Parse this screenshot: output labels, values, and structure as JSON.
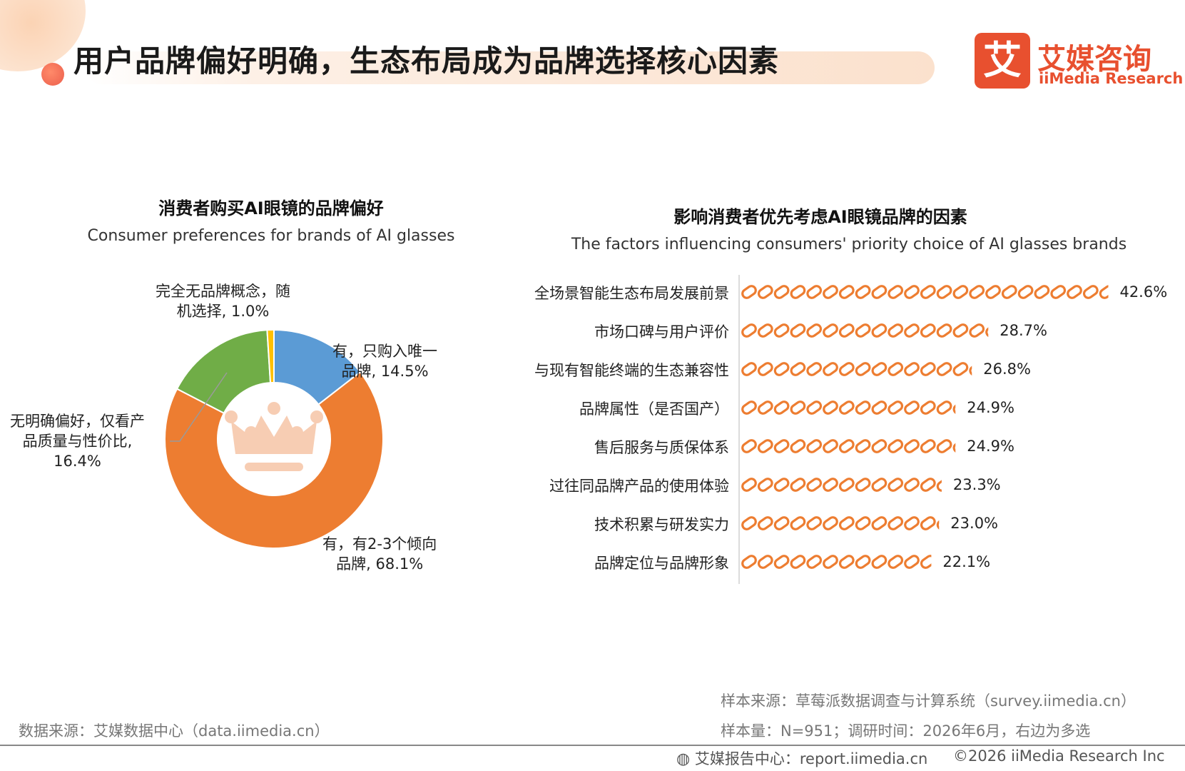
{
  "header": {
    "title": "用户品牌偏好明确，生态布局成为品牌选择核心因素",
    "logo_mark": "艾",
    "logo_cn": "艾媒咨询",
    "logo_en": "iiMedia Research"
  },
  "colors": {
    "brand": "#e8502f",
    "blue": "#5b9bd5",
    "orange": "#ed7d31",
    "green": "#70ad47",
    "yellow": "#ffc000"
  },
  "chart_data": [
    {
      "type": "pie",
      "title": "消费者购买AI眼镜的品牌偏好",
      "subtitle": "Consumer preferences for brands of AI glasses",
      "slices": [
        {
          "label_lines": [
            "有，只购入唯一",
            "品牌, 14.5%"
          ],
          "category": "有，只购入唯一品牌",
          "value": 14.5,
          "color": "#5b9bd5"
        },
        {
          "label_lines": [
            "有，有2-3个倾向",
            "品牌, 68.1%"
          ],
          "category": "有，有2-3个倾向品牌",
          "value": 68.1,
          "color": "#ed7d31"
        },
        {
          "label_lines": [
            "无明确偏好，仅看产",
            "品质量与性价比,",
            "16.4%"
          ],
          "category": "无明确偏好，仅看产品质量与性价比",
          "value": 16.4,
          "color": "#70ad47"
        },
        {
          "label_lines": [
            "完全无品牌概念，随",
            "机选择, 1.0%"
          ],
          "category": "完全无品牌概念，随机选择",
          "value": 1.0,
          "color": "#ffc000"
        }
      ],
      "center_icon": "crown-icon"
    },
    {
      "type": "bar",
      "orientation": "horizontal",
      "title": "影响消费者优先考虑AI眼镜品牌的因素",
      "subtitle": "The factors influencing consumers' priority choice of AI glasses brands",
      "categories": [
        "全场景智能生态布局发展前景",
        "市场口碑与用户评价",
        "与现有智能终端的生态兼容性",
        "品牌属性（是否国产）",
        "售后服务与质保体系",
        "过往同品牌产品的使用体验",
        "技术积累与研发实力",
        "品牌定位与品牌形象"
      ],
      "values": [
        42.6,
        28.7,
        26.8,
        24.9,
        24.9,
        23.3,
        23.0,
        22.1
      ],
      "value_labels": [
        "42.6%",
        "28.7%",
        "26.8%",
        "24.9%",
        "24.9%",
        "23.3%",
        "23.0%",
        "22.1%"
      ],
      "bar_icon": "chain-link-icon",
      "bar_color": "#ed7d31"
    }
  ],
  "footer": {
    "data_source": "数据来源：艾媒数据中心（data.iimedia.cn）",
    "sample_source": "样本来源：草莓派数据调查与计算系统（survey.iimedia.cn）",
    "sample_size": "样本量：N=951；调研时间：2026年6月，右边为多选",
    "report_center": "艾媒报告中心：report.iimedia.cn",
    "copyright": "©2026  iiMedia Research  Inc"
  }
}
